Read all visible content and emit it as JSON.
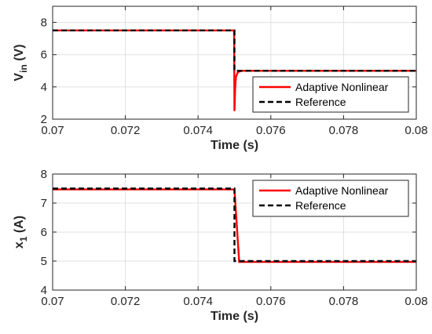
{
  "chart_data": [
    {
      "type": "line",
      "title": "",
      "xlabel": "Time (s)",
      "ylabel": "V",
      "ylabel_sub": "in",
      "ylabel_unit": " (V)",
      "xlim": [
        0.07,
        0.08
      ],
      "ylim": [
        2,
        9
      ],
      "xticks": [
        0.07,
        0.072,
        0.074,
        0.076,
        0.078,
        0.08
      ],
      "xtick_labels": [
        "0.07",
        "0.072",
        "0.074",
        "0.076",
        "0.078",
        "0.08"
      ],
      "yticks": [
        2,
        4,
        6,
        8
      ],
      "ytick_labels": [
        "2",
        "4",
        "6",
        "8"
      ],
      "grid": true,
      "legend_position": "bottom-right",
      "series": [
        {
          "name": "Adaptive Nonlinear",
          "color": "#ff0000",
          "style": "solid",
          "x": [
            0.07,
            0.07499,
            0.075,
            0.07502,
            0.07504,
            0.07508,
            0.07512,
            0.0752,
            0.08
          ],
          "y": [
            7.5,
            7.5,
            2.5,
            4.0,
            4.6,
            4.85,
            4.95,
            5.0,
            5.0
          ]
        },
        {
          "name": "Reference",
          "color": "#000000",
          "style": "dashed",
          "x": [
            0.07,
            0.075,
            0.075,
            0.08
          ],
          "y": [
            7.5,
            7.5,
            5.0,
            5.0
          ]
        }
      ]
    },
    {
      "type": "line",
      "title": "",
      "xlabel": "Time (s)",
      "ylabel": "x",
      "ylabel_sub": "1",
      "ylabel_unit": " (A)",
      "xlim": [
        0.07,
        0.08
      ],
      "ylim": [
        4,
        8
      ],
      "xticks": [
        0.07,
        0.072,
        0.074,
        0.076,
        0.078,
        0.08
      ],
      "xtick_labels": [
        "0.07",
        "0.072",
        "0.074",
        "0.076",
        "0.078",
        "0.08"
      ],
      "yticks": [
        4,
        5,
        6,
        7,
        8
      ],
      "ytick_labels": [
        "4",
        "5",
        "6",
        "7",
        "8"
      ],
      "grid": true,
      "legend_position": "top-right",
      "series": [
        {
          "name": "Adaptive Nonlinear",
          "color": "#ff0000",
          "style": "solid",
          "x": [
            0.07,
            0.075,
            0.07513,
            0.08
          ],
          "y": [
            7.47,
            7.47,
            4.97,
            4.97
          ]
        },
        {
          "name": "Reference",
          "color": "#000000",
          "style": "dashed",
          "x": [
            0.07,
            0.075,
            0.075,
            0.08
          ],
          "y": [
            7.5,
            7.5,
            5.0,
            5.0
          ]
        }
      ]
    }
  ]
}
